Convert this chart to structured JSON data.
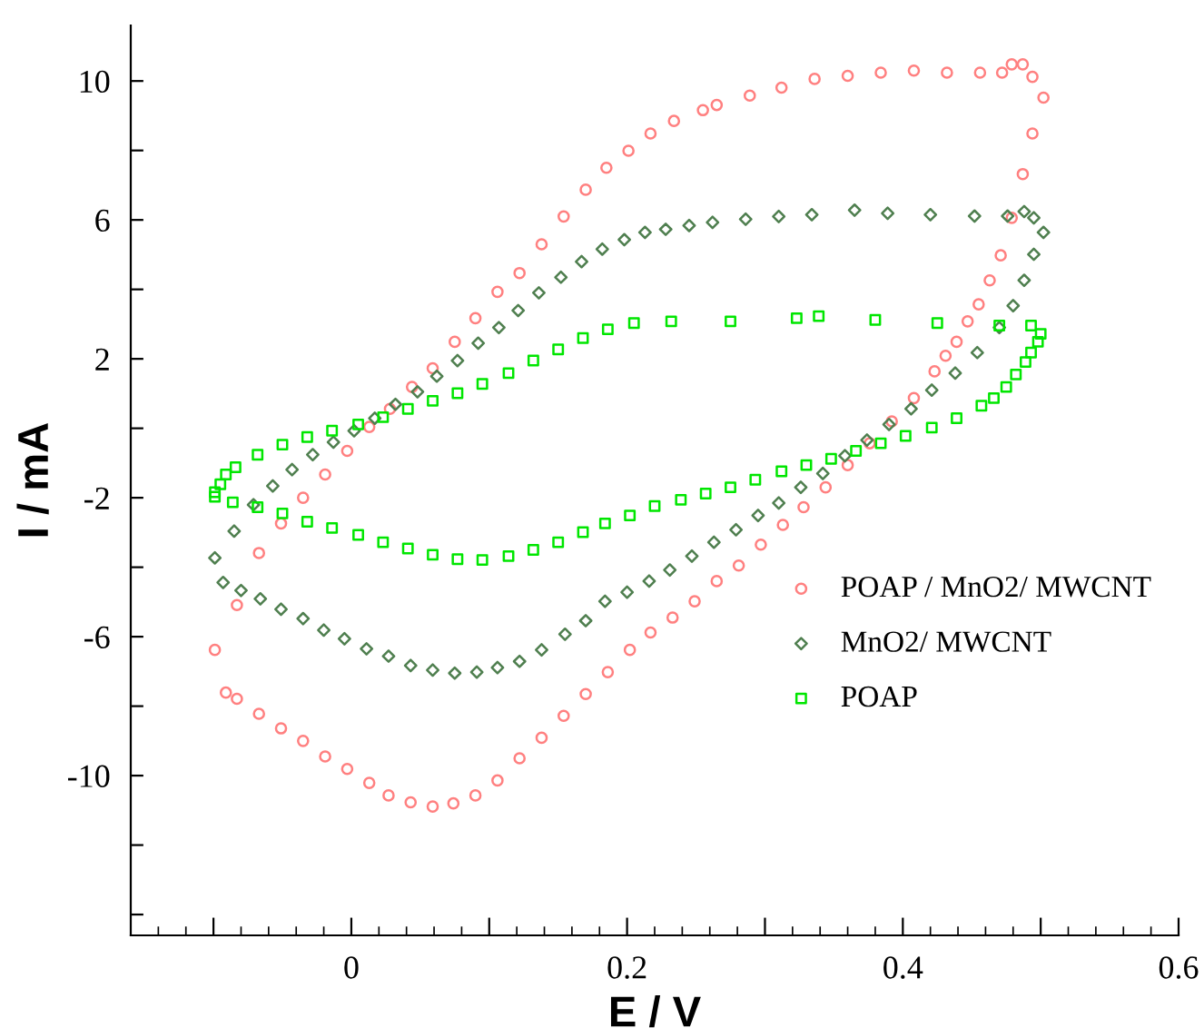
{
  "chart_data": {
    "type": "scatter",
    "xlabel": "E / V",
    "ylabel": "I / mA",
    "xlim": [
      -0.16,
      0.6
    ],
    "ylim": [
      -14.6,
      11.6
    ],
    "xticks": [
      {
        "value": -0.1,
        "label": null
      },
      0,
      {
        "value": 0.1,
        "label": null
      },
      0.2,
      {
        "value": 0.3,
        "label": null
      },
      0.4,
      {
        "value": 0.5,
        "label": null
      },
      0.6
    ],
    "yticks": [
      10,
      {
        "value": 8,
        "label": null
      },
      6,
      {
        "value": 4,
        "label": null
      },
      2,
      {
        "value": 0,
        "label": null
      },
      -2,
      {
        "value": -4,
        "label": null
      },
      -6,
      {
        "value": -8,
        "label": null
      },
      -10,
      {
        "value": -12,
        "label": null
      },
      {
        "value": -14,
        "label": null
      }
    ],
    "grid": false,
    "legend": "right",
    "series": [
      {
        "name": "POAP / MnO2/ MWCNT",
        "color": "#ff8080",
        "marker": "circle",
        "x": [
          -0.099,
          -0.083,
          -0.067,
          -0.051,
          -0.035,
          -0.019,
          -0.003,
          0.013,
          0.028,
          0.044,
          0.059,
          0.075,
          0.09,
          0.106,
          0.122,
          0.138,
          0.154,
          0.17,
          0.185,
          0.201,
          0.217,
          0.234,
          0.255,
          0.265,
          0.289,
          0.312,
          0.336,
          0.36,
          0.384,
          0.408,
          0.432,
          0.456,
          0.472,
          0.479,
          0.487,
          0.494,
          0.502,
          0.494,
          0.487,
          0.479,
          0.471,
          0.463,
          0.455,
          0.447,
          0.439,
          0.431,
          0.423,
          0.408,
          0.392,
          0.376,
          0.36,
          0.344,
          0.328,
          0.313,
          0.297,
          0.281,
          0.265,
          0.249,
          0.233,
          0.217,
          0.202,
          0.186,
          0.17,
          0.154,
          0.138,
          0.122,
          0.106,
          0.09,
          0.074,
          0.059,
          0.043,
          0.027,
          0.013,
          -0.003,
          -0.019,
          -0.035,
          -0.051,
          -0.067,
          -0.083,
          -0.091
        ],
        "values": [
          -6.38,
          -5.09,
          -3.59,
          -2.74,
          -2.0,
          -1.33,
          -0.65,
          0.04,
          0.56,
          1.19,
          1.73,
          2.49,
          3.17,
          3.93,
          4.47,
          5.3,
          6.1,
          6.87,
          7.5,
          7.99,
          8.49,
          8.85,
          9.16,
          9.31,
          9.58,
          9.81,
          10.06,
          10.15,
          10.24,
          10.3,
          10.24,
          10.24,
          10.24,
          10.48,
          10.48,
          10.12,
          9.52,
          8.49,
          7.32,
          6.06,
          4.98,
          4.26,
          3.57,
          3.08,
          2.49,
          2.09,
          1.64,
          0.87,
          0.2,
          -0.43,
          -1.06,
          -1.7,
          -2.27,
          -2.78,
          -3.35,
          -3.95,
          -4.4,
          -4.98,
          -5.45,
          -5.88,
          -6.38,
          -7.02,
          -7.65,
          -8.28,
          -8.91,
          -9.5,
          -10.14,
          -10.57,
          -10.8,
          -10.89,
          -10.77,
          -10.57,
          -10.21,
          -9.81,
          -9.45,
          -9.0,
          -8.64,
          -8.22,
          -7.79,
          -7.61
        ]
      },
      {
        "name": "MnO2/ MWCNT",
        "color": "#4f7f4f",
        "marker": "diamond",
        "x": [
          -0.099,
          -0.085,
          -0.071,
          -0.057,
          -0.043,
          -0.028,
          -0.013,
          0.002,
          0.017,
          0.032,
          0.048,
          0.062,
          0.077,
          0.092,
          0.107,
          0.121,
          0.136,
          0.152,
          0.167,
          0.182,
          0.198,
          0.213,
          0.228,
          0.245,
          0.262,
          0.286,
          0.31,
          0.334,
          0.365,
          0.389,
          0.42,
          0.452,
          0.476,
          0.488,
          0.495,
          0.502,
          0.495,
          0.488,
          0.48,
          0.47,
          0.454,
          0.438,
          0.421,
          0.406,
          0.39,
          0.374,
          0.358,
          0.342,
          0.326,
          0.31,
          0.295,
          0.279,
          0.263,
          0.247,
          0.231,
          0.216,
          0.2,
          0.184,
          0.17,
          0.155,
          0.138,
          0.122,
          0.106,
          0.091,
          0.075,
          0.059,
          0.043,
          0.027,
          0.011,
          -0.005,
          -0.02,
          -0.035,
          -0.051,
          -0.066,
          -0.08,
          -0.093
        ],
        "values": [
          -3.73,
          -2.96,
          -2.2,
          -1.66,
          -1.19,
          -0.76,
          -0.4,
          -0.07,
          0.29,
          0.69,
          1.05,
          1.5,
          1.95,
          2.45,
          2.9,
          3.39,
          3.9,
          4.35,
          4.8,
          5.16,
          5.43,
          5.64,
          5.73,
          5.84,
          5.93,
          6.02,
          6.1,
          6.15,
          6.28,
          6.19,
          6.15,
          6.11,
          6.11,
          6.24,
          6.06,
          5.64,
          5.01,
          4.26,
          3.53,
          2.9,
          2.18,
          1.59,
          1.1,
          0.56,
          0.11,
          -0.34,
          -0.79,
          -1.3,
          -1.7,
          -2.15,
          -2.51,
          -2.92,
          -3.28,
          -3.68,
          -4.08,
          -4.4,
          -4.72,
          -4.98,
          -5.54,
          -5.93,
          -6.38,
          -6.71,
          -6.89,
          -7.02,
          -7.05,
          -6.96,
          -6.83,
          -6.56,
          -6.35,
          -6.06,
          -5.81,
          -5.48,
          -5.21,
          -4.91,
          -4.67,
          -4.44
        ]
      },
      {
        "name": "POAP",
        "color": "#00e600",
        "marker": "square",
        "x": [
          -0.099,
          -0.095,
          -0.091,
          -0.084,
          -0.068,
          -0.05,
          -0.032,
          -0.014,
          0.005,
          0.023,
          0.041,
          0.059,
          0.077,
          0.095,
          0.114,
          0.132,
          0.15,
          0.168,
          0.186,
          0.205,
          0.232,
          0.275,
          0.323,
          0.339,
          0.38,
          0.425,
          0.47,
          0.493,
          0.5,
          0.498,
          0.493,
          0.489,
          0.482,
          0.475,
          0.466,
          0.457,
          0.439,
          0.421,
          0.402,
          0.384,
          0.366,
          0.348,
          0.33,
          0.312,
          0.293,
          0.275,
          0.257,
          0.239,
          0.22,
          0.202,
          0.184,
          0.168,
          0.15,
          0.132,
          0.114,
          0.095,
          0.077,
          0.059,
          0.041,
          0.023,
          0.005,
          -0.014,
          -0.032,
          -0.05,
          -0.068,
          -0.086,
          -0.099
        ],
        "values": [
          -1.84,
          -1.61,
          -1.33,
          -1.12,
          -0.76,
          -0.47,
          -0.25,
          -0.07,
          0.11,
          0.32,
          0.56,
          0.79,
          1.01,
          1.28,
          1.59,
          1.95,
          2.27,
          2.6,
          2.85,
          3.03,
          3.08,
          3.08,
          3.17,
          3.23,
          3.12,
          3.03,
          2.96,
          2.96,
          2.72,
          2.49,
          2.18,
          1.91,
          1.55,
          1.19,
          0.87,
          0.65,
          0.29,
          0.02,
          -0.22,
          -0.43,
          -0.65,
          -0.88,
          -1.06,
          -1.24,
          -1.48,
          -1.7,
          -1.88,
          -2.06,
          -2.24,
          -2.51,
          -2.74,
          -2.99,
          -3.28,
          -3.5,
          -3.68,
          -3.79,
          -3.77,
          -3.64,
          -3.46,
          -3.28,
          -3.07,
          -2.87,
          -2.69,
          -2.45,
          -2.27,
          -2.13,
          -1.97
        ]
      }
    ]
  }
}
